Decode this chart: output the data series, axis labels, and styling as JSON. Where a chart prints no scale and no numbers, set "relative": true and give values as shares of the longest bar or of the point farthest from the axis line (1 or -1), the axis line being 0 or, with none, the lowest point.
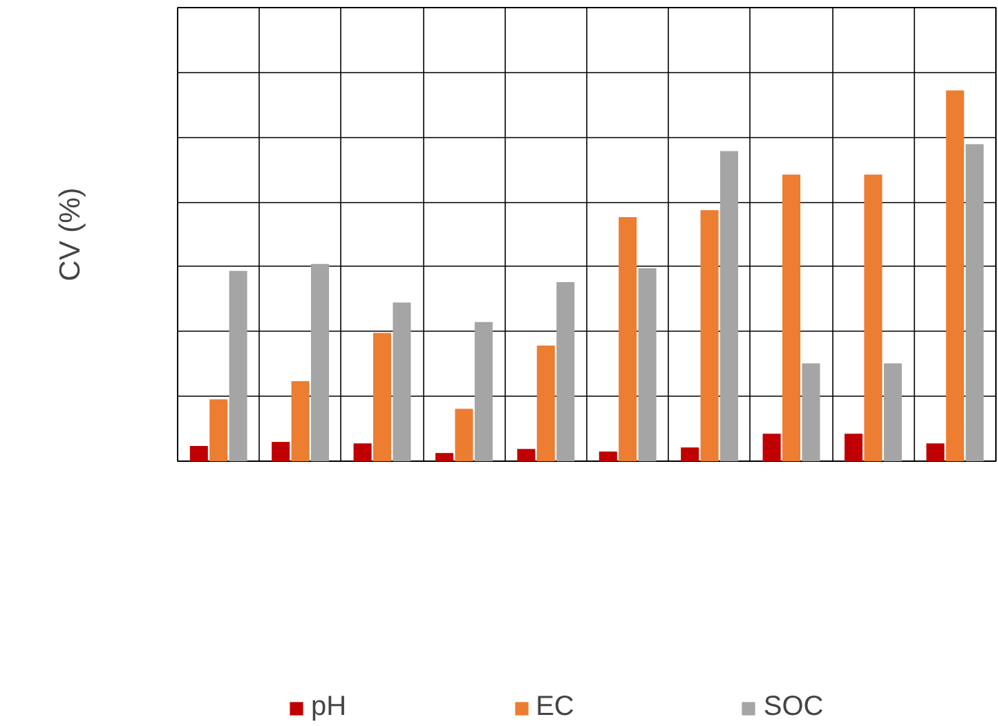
{
  "chart_data": {
    "type": "bar",
    "ylabel": "CV (%)",
    "relative": true,
    "categories": [
      null,
      null,
      null,
      null,
      null,
      null,
      null,
      null,
      null,
      null
    ],
    "series": [
      {
        "name": "pH",
        "color": "#c00000",
        "values": [
          0.041,
          0.052,
          0.048,
          0.022,
          0.033,
          0.026,
          0.037,
          0.074,
          0.074,
          0.048
        ]
      },
      {
        "name": "EC",
        "color": "#ed7d31",
        "values": [
          0.167,
          0.216,
          0.346,
          0.141,
          0.312,
          0.658,
          0.677,
          0.773,
          0.773,
          1.0
        ]
      },
      {
        "name": "SOC",
        "color": "#a5a5a5",
        "values": [
          0.513,
          0.532,
          0.428,
          0.375,
          0.483,
          0.52,
          0.836,
          0.264,
          0.264,
          0.855
        ]
      }
    ],
    "grid": true,
    "legend": "bottom",
    "tick_labels": false
  }
}
